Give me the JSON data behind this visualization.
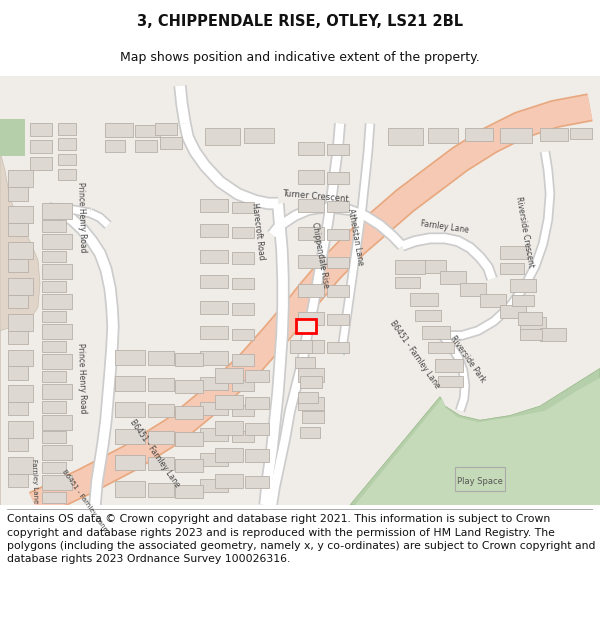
{
  "title_line1": "3, CHIPPENDALE RISE, OTLEY, LS21 2BL",
  "title_line2": "Map shows position and indicative extent of the property.",
  "footer_text": "Contains OS data © Crown copyright and database right 2021. This information is subject to Crown copyright and database rights 2023 and is reproduced with the permission of HM Land Registry. The polygons (including the associated geometry, namely x, y co-ordinates) are subject to Crown copyright and database rights 2023 Ordnance Survey 100026316.",
  "title_fontsize": 10.5,
  "subtitle_fontsize": 9,
  "footer_fontsize": 7.8,
  "map_bg": "#f0ede8",
  "road_main_fill": "#f5c9b3",
  "road_main_edge": "#e8a880",
  "road_white": "#ffffff",
  "road_edge": "#cccccc",
  "bld_fill": "#ddd8d2",
  "bld_edge": "#b8b0a8",
  "green_fill": "#b5cfaa",
  "green_dark": "#98b888",
  "tan_fill": "#e0d5c8",
  "tan_edge": "#c8bfb0",
  "red_mark": "#ff0000",
  "blue_line": "#aaccdd",
  "fig_w": 6.0,
  "fig_h": 6.25
}
